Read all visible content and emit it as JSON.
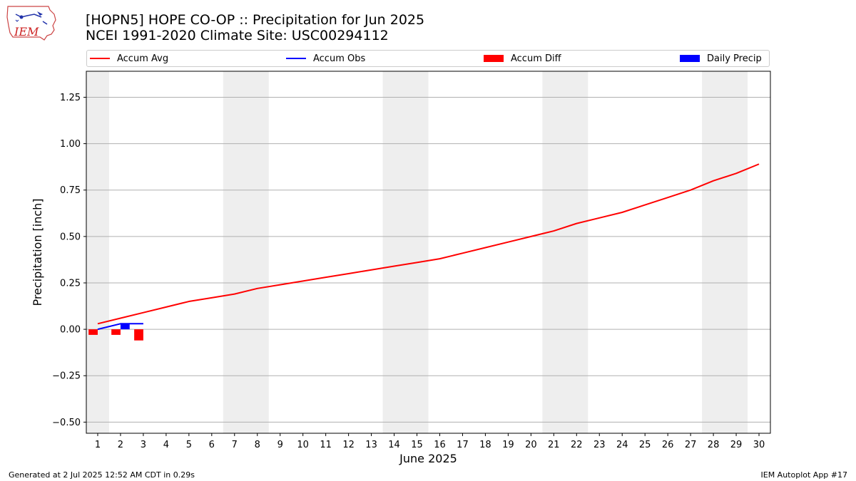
{
  "header": {
    "title_line1": "[HOPN5] HOPE CO-OP :: Precipitation for Jun 2025",
    "title_line2": "NCEI 1991-2020 Climate Site: USC00294112",
    "logo_text": "IEM"
  },
  "footer": {
    "generated": "Generated at 2 Jul 2025 12:52 AM CDT in 0.29s",
    "app": "IEM Autoplot App #17"
  },
  "colors": {
    "accum_avg": "#ff0000",
    "accum_obs": "#0000ff",
    "accum_diff": "#ff0000",
    "daily_precip": "#0000ff",
    "weekend_shade": "#eeeeee",
    "grid": "#b0b0b0"
  },
  "legend": [
    {
      "label": "Accum Avg",
      "kind": "line",
      "color": "#ff0000"
    },
    {
      "label": "Accum Obs",
      "kind": "line",
      "color": "#0000ff"
    },
    {
      "label": "Accum Diff",
      "kind": "box",
      "color": "#ff0000"
    },
    {
      "label": "Daily Precip",
      "kind": "box",
      "color": "#0000ff"
    }
  ],
  "chart_data": {
    "type": "line",
    "xlabel": "June 2025",
    "ylabel": "Precipitation [inch]",
    "xlim": [
      0.5,
      30.5
    ],
    "ylim": [
      -0.56,
      1.39
    ],
    "grid": true,
    "legend_position": "top",
    "x": [
      1,
      2,
      3,
      4,
      5,
      6,
      7,
      8,
      9,
      10,
      11,
      12,
      13,
      14,
      15,
      16,
      17,
      18,
      19,
      20,
      21,
      22,
      23,
      24,
      25,
      26,
      27,
      28,
      29,
      30
    ],
    "x_tick_labels": [
      "1",
      "2",
      "3",
      "4",
      "5",
      "6",
      "7",
      "8",
      "9",
      "10",
      "11",
      "12",
      "13",
      "14",
      "15",
      "16",
      "17",
      "18",
      "19",
      "20",
      "21",
      "22",
      "23",
      "24",
      "25",
      "26",
      "27",
      "28",
      "29",
      "30"
    ],
    "y_ticks": [
      -0.5,
      -0.25,
      0.0,
      0.25,
      0.5,
      0.75,
      1.0,
      1.25
    ],
    "y_tick_labels": [
      "−0.50",
      "−0.25",
      "0.00",
      "0.25",
      "0.50",
      "0.75",
      "1.00",
      "1.25"
    ],
    "shaded_days": [
      [
        0.5,
        1.5
      ],
      [
        6.5,
        8.5
      ],
      [
        13.5,
        15.5
      ],
      [
        20.5,
        22.5
      ],
      [
        27.5,
        29.5
      ]
    ],
    "series": [
      {
        "name": "Accum Avg",
        "kind": "line",
        "color": "#ff0000",
        "x": [
          1,
          2,
          3,
          4,
          5,
          6,
          7,
          8,
          9,
          10,
          11,
          12,
          13,
          14,
          15,
          16,
          17,
          18,
          19,
          20,
          21,
          22,
          23,
          24,
          25,
          26,
          27,
          28,
          29,
          30
        ],
        "values": [
          0.03,
          0.06,
          0.09,
          0.12,
          0.15,
          0.17,
          0.19,
          0.22,
          0.24,
          0.26,
          0.28,
          0.3,
          0.32,
          0.34,
          0.36,
          0.38,
          0.41,
          0.44,
          0.47,
          0.5,
          0.53,
          0.57,
          0.6,
          0.63,
          0.67,
          0.71,
          0.75,
          0.8,
          0.84,
          0.89
        ]
      },
      {
        "name": "Accum Obs",
        "kind": "line",
        "color": "#0000ff",
        "x": [
          1,
          2,
          3
        ],
        "values": [
          0.0,
          0.03,
          0.03
        ]
      },
      {
        "name": "Accum Diff",
        "kind": "bar",
        "color": "#ff0000",
        "x": [
          1,
          2,
          3
        ],
        "values": [
          -0.03,
          -0.03,
          -0.06
        ]
      },
      {
        "name": "Daily Precip",
        "kind": "bar",
        "color": "#0000ff",
        "x": [
          1,
          2,
          3
        ],
        "values": [
          0.0,
          0.03,
          0.0
        ]
      }
    ]
  }
}
